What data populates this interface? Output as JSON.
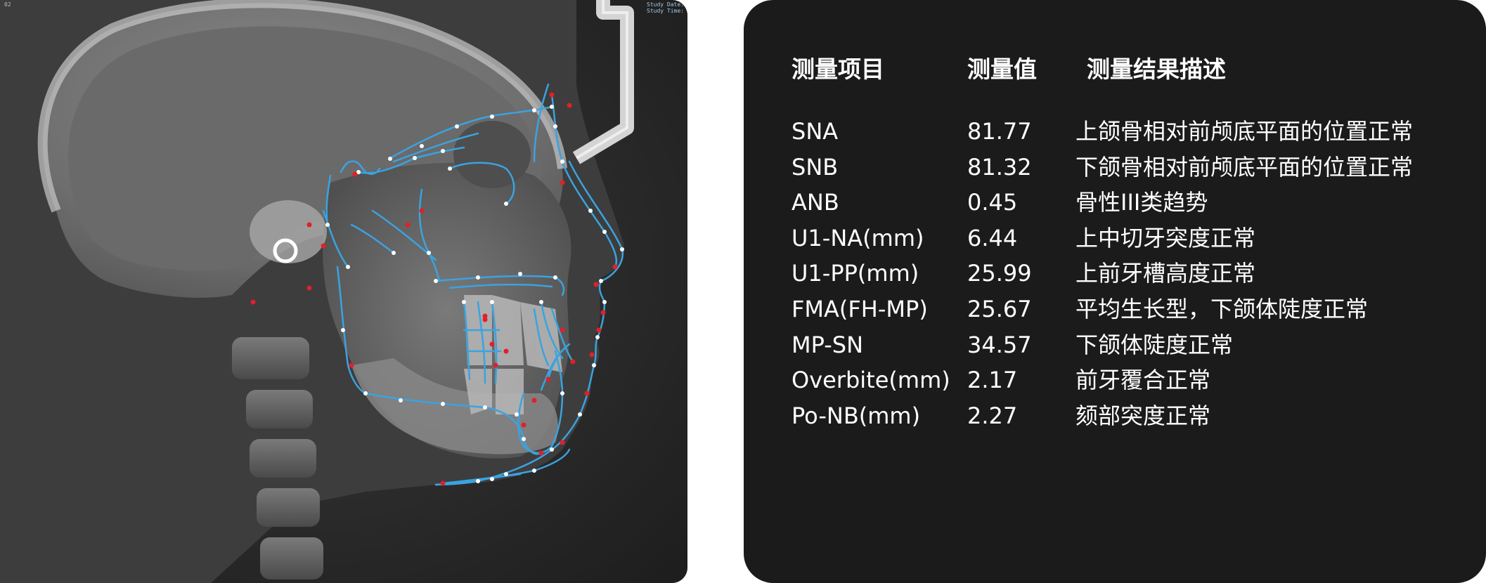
{
  "xray": {
    "overlay_study_date": "Study Date:",
    "overlay_study_time": "Study Time:",
    "corner_mark": "02"
  },
  "results": {
    "headers": {
      "item": "测量项目",
      "value": "测量值",
      "description": "测量结果描述"
    },
    "rows": [
      {
        "item": "SNA",
        "value": "81.77",
        "description": "上颌骨相对前颅底平面的位置正常"
      },
      {
        "item": "SNB",
        "value": "81.32",
        "description": "下颌骨相对前颅底平面的位置正常"
      },
      {
        "item": "ANB",
        "value": "0.45",
        "description": "骨性III类趋势"
      },
      {
        "item": "U1-NA(mm)",
        "value": "6.44",
        "description": "上中切牙突度正常"
      },
      {
        "item": "U1-PP(mm)",
        "value": "25.99",
        "description": "上前牙槽高度正常"
      },
      {
        "item": "FMA(FH-MP)",
        "value": "25.67",
        "description": "平均生长型，下颌体陡度正常"
      },
      {
        "item": "MP-SN",
        "value": "34.57",
        "description": "下颌体陡度正常"
      },
      {
        "item": "Overbite(mm)",
        "value": "2.17",
        "description": "前牙覆合正常"
      },
      {
        "item": "Po-NB(mm)",
        "value": "2.27",
        "description": "颏部突度正常"
      }
    ]
  },
  "colors": {
    "tracing_line": "#3aa3e0",
    "landmark_red": "#e0202a",
    "landmark_white": "#ffffff",
    "panel_bg": "#1b1b1b"
  }
}
